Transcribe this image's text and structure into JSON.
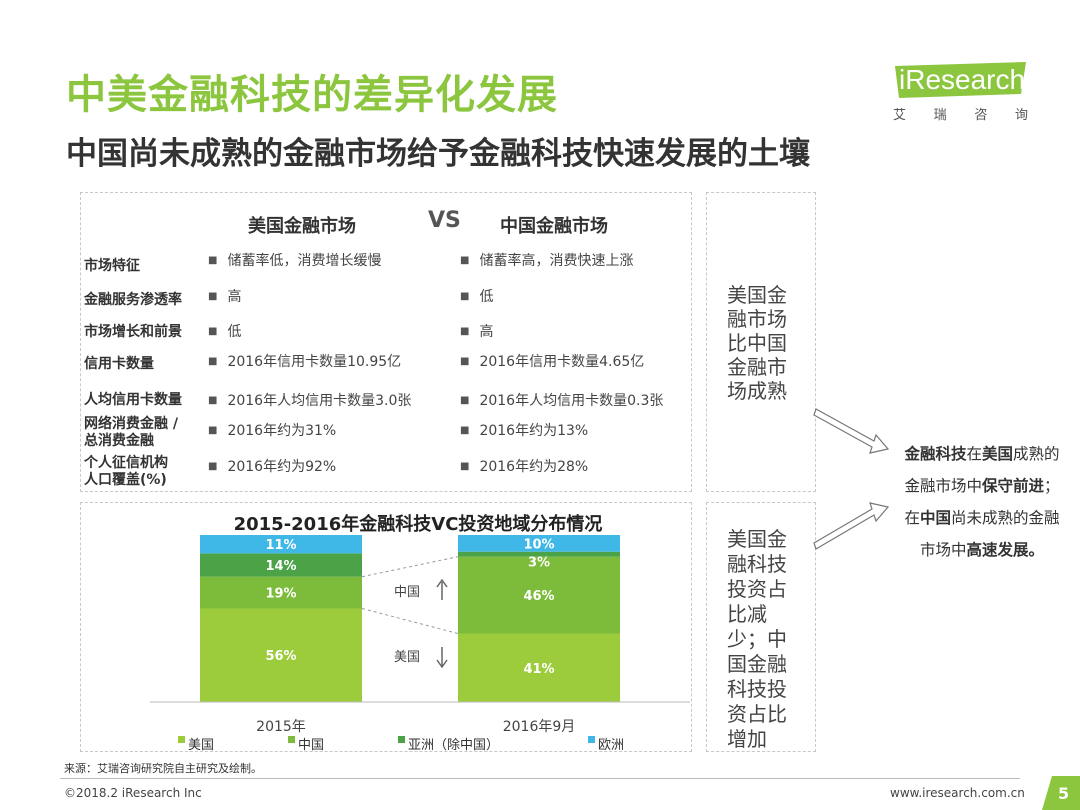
{
  "title": "中美金融科技的差异化发展",
  "subtitle": "中国尚未成熟的金融市场给予金融科技快速发展的土壤",
  "logo": {
    "word_green": "i",
    "word_grey": "Research",
    "cn": [
      "艾",
      "瑞",
      "咨",
      "询"
    ]
  },
  "comparison": {
    "us_header": "美国金融市场",
    "vs": "VS",
    "cn_header": "中国金融市场",
    "rows": [
      {
        "label": "市场特征",
        "us": "储蓄率低，消费增长缓慢",
        "cn": "储蓄率高，消费快速上涨"
      },
      {
        "label": "金融服务渗透率",
        "us": "高",
        "cn": "低"
      },
      {
        "label": "市场增长和前景",
        "us": "低",
        "cn": "高"
      },
      {
        "label": "信用卡数量",
        "us": "2016年信用卡数量10.95亿",
        "cn": "2016年信用卡数量4.65亿"
      },
      {
        "label": "人均信用卡数量",
        "us": "2016年人均信用卡数量3.0张",
        "cn": "2016年人均信用卡数量0.3张"
      },
      {
        "label": "网络消费金融 / 总消费金融",
        "us": "2016年约为31%",
        "cn": "2016年约为13%"
      },
      {
        "label": "个人征信机构 人口覆盖(%)",
        "us": "2016年约为92%",
        "cn": "2016年约为28%"
      }
    ]
  },
  "side_note_1": "美国金融市场比中国金融市场成熟",
  "side_note_2": "美国金融科技投资占比减少；中国金融科技投资占比增加",
  "conclusion": {
    "l1_a": "金融科技",
    "l1_b": "在",
    "l1_c": "美国",
    "l1_d": "成熟的",
    "l2_a": "金融市场中",
    "l2_b": "保守前进",
    "l2_c": "；",
    "l3_a": "在",
    "l3_b": "中国",
    "l3_c": "尚未成熟的金融",
    "l4_a": "市场中",
    "l4_b": "高速发展。"
  },
  "chart_data": {
    "type": "bar",
    "stacked": true,
    "title": "2015-2016年金融科技VC投资地域分布情况",
    "categories": [
      "2015年",
      "2016年9月"
    ],
    "series": [
      {
        "name": "美国",
        "values": [
          56,
          41
        ],
        "labels": [
          "56%",
          "41%"
        ],
        "color": "#9ccc3c"
      },
      {
        "name": "中国",
        "values": [
          19,
          46
        ],
        "labels": [
          "19%",
          "46%"
        ],
        "color": "#7cbc3a"
      },
      {
        "name": "亚洲（除中国）",
        "values": [
          14,
          3
        ],
        "labels": [
          "14%",
          "3%"
        ],
        "color": "#4ba247"
      },
      {
        "name": "欧洲",
        "values": [
          11,
          10
        ],
        "labels": [
          "11%",
          "10%"
        ],
        "color": "#3fb8e8"
      }
    ],
    "annotations": [
      {
        "text": "中国",
        "arrow": "up"
      },
      {
        "text": "美国",
        "arrow": "down"
      }
    ],
    "ylim": [
      0,
      100
    ]
  },
  "footer": {
    "source": "来源：艾瑞咨询研究院自主研究及绘制。",
    "copyright": "©2018.2 iResearch Inc",
    "website": "www.iresearch.com.cn",
    "page": "5"
  },
  "colors": {
    "brand_green": "#8cc63f",
    "page_tab": "#8cc63f"
  }
}
